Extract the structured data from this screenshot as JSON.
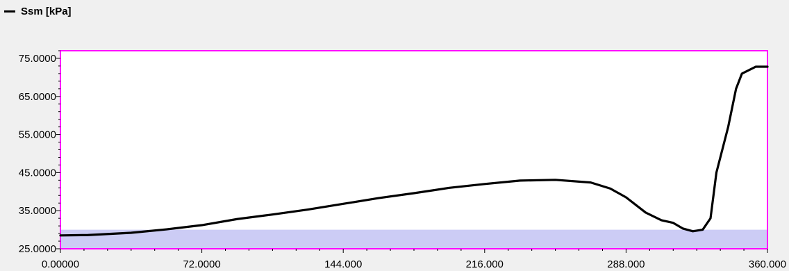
{
  "chart_data": {
    "type": "line",
    "legend": {
      "position": "top-left",
      "label": "Ssm [kPa]"
    },
    "x_ticks": [
      "0.00000",
      "72.0000",
      "144.000",
      "216.000",
      "288.000",
      "360.000"
    ],
    "y_ticks": [
      "25.0000",
      "35.0000",
      "45.0000",
      "55.0000",
      "65.0000",
      "75.0000"
    ],
    "xlim": [
      0,
      360
    ],
    "ylim": [
      25,
      77
    ],
    "grid": false,
    "band": {
      "y_from": 25,
      "y_to": 30,
      "color": "#ccccf5"
    },
    "colors": {
      "line": "#000000",
      "plot_border": "#ff00ff",
      "plot_bg": "#ffffff",
      "page_bg": "#f0f0f0"
    },
    "series": [
      {
        "name": "Ssm [kPa]",
        "x": [
          0,
          14,
          36,
          54,
          72,
          90,
          108,
          126,
          144,
          162,
          180,
          198,
          216,
          234,
          252,
          270,
          280,
          288,
          298,
          306,
          312,
          317,
          322,
          327,
          331,
          334,
          340,
          344,
          347,
          354,
          360
        ],
        "y": [
          28.5,
          28.6,
          29.2,
          30.1,
          31.2,
          32.8,
          34.0,
          35.3,
          36.8,
          38.3,
          39.6,
          41.0,
          42.0,
          42.9,
          43.1,
          42.4,
          40.8,
          38.5,
          34.5,
          32.5,
          31.8,
          30.3,
          29.6,
          30.0,
          33.0,
          45.0,
          57.0,
          67.0,
          71.0,
          72.8,
          72.8
        ]
      }
    ]
  }
}
